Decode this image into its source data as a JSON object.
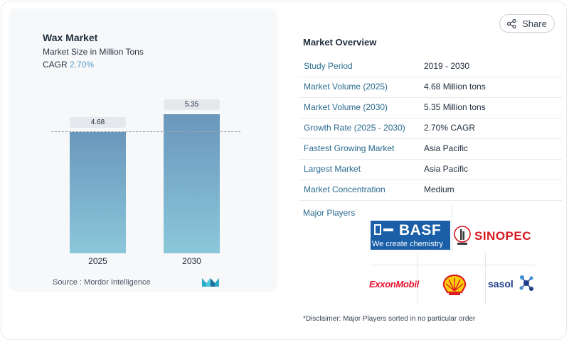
{
  "header": {
    "share_label": "Share"
  },
  "chart": {
    "title": "Wax Market",
    "subtitle": "Market Size in Million Tons",
    "cagr_label": "CAGR",
    "cagr_value": "2.70%",
    "source": "Source :",
    "source_name": "Mordor Intelligence"
  },
  "chart_data": {
    "type": "bar",
    "title": "Wax Market",
    "ylabel": "Market Size in Million Tons",
    "categories": [
      "2025",
      "2030"
    ],
    "values": [
      4.68,
      5.35
    ],
    "data_labels": [
      "4.68",
      "5.35"
    ],
    "ylim": [
      0,
      5.35
    ],
    "colors": {
      "bar_top": "#6a97bc",
      "bar_bottom": "#8bc7da"
    }
  },
  "overview": {
    "title": "Market Overview",
    "rows": [
      {
        "key": "Study Period",
        "value": "2019 - 2030"
      },
      {
        "key": "Market Volume (2025)",
        "value": "4.68 Million tons"
      },
      {
        "key": "Market Volume (2030)",
        "value": "5.35 Million tons"
      },
      {
        "key": "Growth Rate (2025 - 2030)",
        "value": "2.70% CAGR"
      },
      {
        "key": "Fastest Growing Market",
        "value": "Asia Pacific"
      },
      {
        "key": "Largest Market",
        "value": "Asia Pacific"
      },
      {
        "key": "Market Concentration",
        "value": "Medium"
      }
    ]
  },
  "players": {
    "title": "Major Players",
    "basf_name": "BASF",
    "basf_tagline": "We create chemistry",
    "sinopec": "SINOPEC",
    "exxon": "ExxonMobil",
    "sasol": "sasol"
  },
  "disclaimer": "*Disclaimer: Major Players sorted in no particular order",
  "colors": {
    "accent": "#2a6b8f",
    "cagr": "#5aa0c8",
    "basf_blue": "#1a5fa8",
    "sinopec_red": "#d71920",
    "exxon_red": "#e8112d",
    "shell_yellow": "#fbce07",
    "shell_red": "#dd1d21",
    "sasol_blue": "#1d3f8a"
  }
}
